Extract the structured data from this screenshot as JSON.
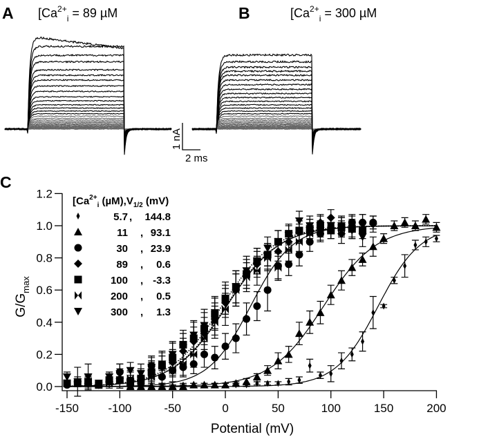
{
  "panels": {
    "A": {
      "label": "A",
      "title_pre": "[Ca",
      "title_sup": "2+",
      "title_sub": "i",
      "title_post": " = 89 µM",
      "amplitudes_nA": [
        0,
        0.02,
        0.04,
        0.06,
        0.08,
        0.1,
        0.13,
        0.16,
        0.2,
        0.24,
        0.29,
        0.34,
        0.4,
        0.48,
        0.57,
        0.67,
        0.78,
        0.9,
        1.05,
        1.2,
        1.4,
        1.6,
        1.82,
        2.0,
        2.2,
        2.5,
        2.74,
        3.07,
        3.45
      ]
    },
    "B": {
      "label": "B",
      "title_pre": "[Ca",
      "title_sup": "2+",
      "title_sub": "i",
      "title_post": " = 300 µM",
      "amplitudes_nA": [
        0,
        0.02,
        0.04,
        0.06,
        0.08,
        0.1,
        0.13,
        0.16,
        0.2,
        0.24,
        0.29,
        0.34,
        0.4,
        0.48,
        0.57,
        0.67,
        0.78,
        0.9,
        1.03,
        1.17,
        1.32,
        1.48,
        1.65,
        1.82,
        2.0,
        2.15,
        2.3,
        2.5,
        2.75
      ]
    },
    "scale_bar": {
      "current": "1 nA",
      "time": "2 ms"
    }
  },
  "chart_data": {
    "type": "scatter",
    "panel_label": "C",
    "xlabel": "Potential (mV)",
    "ylabel": "G/G",
    "ylabel_sub": "max",
    "xlim": [
      -150,
      200
    ],
    "ylim": [
      0,
      1.2
    ],
    "xticks": [
      -150,
      -100,
      -50,
      0,
      50,
      100,
      150,
      200
    ],
    "yticks": [
      "0.0",
      "0.2",
      "0.4",
      "0.6",
      "0.8",
      "1.0",
      "1.2"
    ],
    "legend": {
      "header_pre": "[Ca",
      "header_sup": "2+",
      "header_sub": "i",
      "header_mid": " (µM),V",
      "header_sub2": "1/2",
      "header_post": " (mV)",
      "placement": "top-left"
    },
    "series": [
      {
        "conc": "5.7",
        "v_half": "144.8",
        "marker": "small-diamond",
        "fit_slope_mV": 20,
        "fit_style": "solid",
        "points": [
          [
            -70,
            0.01,
            0.01
          ],
          [
            -60,
            0.01,
            0.01
          ],
          [
            -50,
            0.0,
            0.01
          ],
          [
            -40,
            0.01,
            0.01
          ],
          [
            -30,
            0.01,
            0.01
          ],
          [
            -20,
            0.01,
            0.01
          ],
          [
            -10,
            0.01,
            0.01
          ],
          [
            0,
            0.01,
            0.01
          ],
          [
            10,
            0.01,
            0.01
          ],
          [
            20,
            0.01,
            0.01
          ],
          [
            30,
            0.02,
            0.01
          ],
          [
            40,
            0.02,
            0.01
          ],
          [
            50,
            0.02,
            0.01
          ],
          [
            60,
            0.03,
            0.02
          ],
          [
            70,
            0.04,
            0.02
          ],
          [
            80,
            0.13,
            0.04
          ],
          [
            90,
            0.07,
            0.02
          ],
          [
            100,
            0.08,
            0.05
          ],
          [
            110,
            0.16,
            0.05
          ],
          [
            120,
            0.2,
            0.04
          ],
          [
            130,
            0.28,
            0.06
          ],
          [
            140,
            0.46,
            0.1
          ],
          [
            150,
            0.5,
            0.01
          ],
          [
            160,
            0.66,
            0.02
          ],
          [
            170,
            0.75,
            0.07
          ],
          [
            180,
            0.88,
            0.03
          ],
          [
            190,
            0.9,
            0.03
          ],
          [
            200,
            0.92,
            0.02
          ]
        ]
      },
      {
        "conc": "11",
        "v_half": "93.1",
        "marker": "triangle-up",
        "fit_slope_mV": 25,
        "fit_style": "solid",
        "points": [
          [
            -90,
            0.0,
            0.01
          ],
          [
            -80,
            0.0,
            0.01
          ],
          [
            -70,
            0.0,
            0.01
          ],
          [
            -60,
            0.0,
            0.01
          ],
          [
            -50,
            0.0,
            0.01
          ],
          [
            -40,
            0.0,
            0.01
          ],
          [
            -30,
            0.01,
            0.01
          ],
          [
            -20,
            0.01,
            0.01
          ],
          [
            -10,
            0.01,
            0.01
          ],
          [
            0,
            0.01,
            0.01
          ],
          [
            10,
            0.02,
            0.01
          ],
          [
            20,
            0.03,
            0.02
          ],
          [
            30,
            0.06,
            0.02
          ],
          [
            40,
            0.1,
            0.03
          ],
          [
            50,
            0.16,
            0.05
          ],
          [
            60,
            0.2,
            0.05
          ],
          [
            70,
            0.33,
            0.07
          ],
          [
            80,
            0.4,
            0.07
          ],
          [
            90,
            0.46,
            0.07
          ],
          [
            100,
            0.57,
            0.06
          ],
          [
            110,
            0.66,
            0.06
          ],
          [
            120,
            0.74,
            0.05
          ],
          [
            130,
            0.79,
            0.04
          ],
          [
            140,
            0.87,
            0.06
          ],
          [
            150,
            0.92,
            0.03
          ],
          [
            160,
            1.0,
            0.03
          ],
          [
            170,
            1.02,
            0.03
          ],
          [
            180,
            1.0,
            0.03
          ],
          [
            190,
            1.04,
            0.03
          ],
          [
            200,
            0.99,
            0.03
          ]
        ]
      },
      {
        "conc": "30",
        "v_half": "23.9",
        "marker": "circle",
        "fit_slope_mV": 20,
        "fit_style": "solid",
        "points": [
          [
            -150,
            0.01,
            0.01
          ],
          [
            -130,
            0.02,
            0.01
          ],
          [
            -110,
            0.03,
            0.02
          ],
          [
            -100,
            0.09,
            0.05
          ],
          [
            -90,
            0.01,
            0.02
          ],
          [
            -80,
            0.02,
            0.02
          ],
          [
            -70,
            0.13,
            0.05
          ],
          [
            -60,
            0.06,
            0.04
          ],
          [
            -50,
            0.1,
            0.04
          ],
          [
            -40,
            0.12,
            0.05
          ],
          [
            -30,
            0.14,
            0.06
          ],
          [
            -20,
            0.2,
            0.08
          ],
          [
            -10,
            0.18,
            0.07
          ],
          [
            0,
            0.25,
            0.08
          ],
          [
            10,
            0.3,
            0.09
          ],
          [
            20,
            0.42,
            0.1
          ],
          [
            30,
            0.5,
            0.09
          ],
          [
            40,
            0.6,
            0.13
          ],
          [
            50,
            0.75,
            0.09
          ],
          [
            60,
            0.76,
            0.07
          ],
          [
            70,
            0.82,
            0.07
          ],
          [
            80,
            0.9,
            0.06
          ],
          [
            90,
            0.95,
            0.05
          ],
          [
            100,
            0.97,
            0.05
          ],
          [
            110,
            1.0,
            0.06
          ],
          [
            120,
            1.02,
            0.05
          ],
          [
            130,
            1.02,
            0.05
          ],
          [
            140,
            1.02,
            0.04
          ]
        ]
      },
      {
        "conc": "89",
        "v_half": "0.6",
        "marker": "diamond",
        "fit_slope_mV": 25,
        "fit_style": "dotted",
        "points": [
          [
            -140,
            0.03,
            0.09
          ],
          [
            -130,
            0.02,
            0.02
          ],
          [
            -120,
            0.01,
            0.02
          ],
          [
            -110,
            0.03,
            0.03
          ],
          [
            -100,
            0.05,
            0.06
          ],
          [
            -90,
            0.04,
            0.05
          ],
          [
            -80,
            0.06,
            0.05
          ],
          [
            -70,
            0.1,
            0.06
          ],
          [
            -60,
            0.12,
            0.07
          ],
          [
            -50,
            0.15,
            0.08
          ],
          [
            -40,
            0.22,
            0.08
          ],
          [
            -30,
            0.28,
            0.09
          ],
          [
            -20,
            0.33,
            0.1
          ],
          [
            -10,
            0.42,
            0.1
          ],
          [
            0,
            0.52,
            0.09
          ],
          [
            10,
            0.6,
            0.1
          ],
          [
            20,
            0.7,
            0.09
          ],
          [
            30,
            0.76,
            0.08
          ],
          [
            40,
            0.82,
            0.07
          ],
          [
            50,
            0.84,
            0.06
          ],
          [
            60,
            0.9,
            0.06
          ],
          [
            70,
            0.96,
            0.05
          ],
          [
            80,
            0.99,
            0.05
          ],
          [
            90,
            1.02,
            0.05
          ],
          [
            100,
            1.05,
            0.05
          ],
          [
            110,
            0.95,
            0.06
          ],
          [
            120,
            0.98,
            0.06
          ],
          [
            130,
            1.02,
            0.05
          ],
          [
            140,
            1.01,
            0.05
          ]
        ]
      },
      {
        "conc": "100",
        "v_half": "-3.3",
        "marker": "square",
        "fit_slope_mV": 25,
        "fit_style": "dotted",
        "points": [
          [
            -150,
            0.02,
            0.02
          ],
          [
            -140,
            0.02,
            0.02
          ],
          [
            -130,
            0.03,
            0.03
          ],
          [
            -120,
            0.01,
            0.02
          ],
          [
            -110,
            0.04,
            0.04
          ],
          [
            -100,
            0.04,
            0.05
          ],
          [
            -90,
            0.03,
            0.04
          ],
          [
            -80,
            0.05,
            0.05
          ],
          [
            -70,
            0.09,
            0.06
          ],
          [
            -60,
            0.13,
            0.08
          ],
          [
            -50,
            0.18,
            0.09
          ],
          [
            -40,
            0.26,
            0.09
          ],
          [
            -30,
            0.3,
            0.1
          ],
          [
            -20,
            0.36,
            0.1
          ],
          [
            -10,
            0.45,
            0.1
          ],
          [
            0,
            0.54,
            0.09
          ],
          [
            10,
            0.62,
            0.1
          ],
          [
            20,
            0.7,
            0.09
          ],
          [
            30,
            0.78,
            0.08
          ],
          [
            40,
            0.82,
            0.07
          ],
          [
            50,
            0.9,
            0.07
          ],
          [
            60,
            0.95,
            0.06
          ],
          [
            70,
            0.97,
            0.06
          ],
          [
            80,
            0.98,
            0.06
          ],
          [
            90,
            1.0,
            0.06
          ],
          [
            100,
            0.97,
            0.05
          ],
          [
            110,
            0.99,
            0.06
          ],
          [
            120,
            0.98,
            0.05
          ],
          [
            130,
            0.97,
            0.05
          ]
        ]
      },
      {
        "conc": "200",
        "v_half": "0.5",
        "marker": "bowtie",
        "fit_slope_mV": 25,
        "fit_style": "dotted",
        "points": [
          [
            -150,
            0.02,
            0.02
          ],
          [
            -130,
            0.03,
            0.04
          ],
          [
            -110,
            0.02,
            0.03
          ],
          [
            -90,
            0.05,
            0.05
          ],
          [
            -70,
            0.06,
            0.06
          ],
          [
            -50,
            0.1,
            0.07
          ],
          [
            -40,
            0.14,
            0.08
          ],
          [
            -30,
            0.2,
            0.08
          ],
          [
            -20,
            0.3,
            0.09
          ],
          [
            -10,
            0.4,
            0.1
          ],
          [
            0,
            0.48,
            0.1
          ],
          [
            10,
            0.6,
            0.1
          ],
          [
            20,
            0.68,
            0.09
          ],
          [
            30,
            0.72,
            0.09
          ],
          [
            40,
            0.8,
            0.08
          ],
          [
            50,
            0.74,
            0.07
          ],
          [
            60,
            0.85,
            0.07
          ],
          [
            70,
            0.9,
            0.06
          ],
          [
            80,
            0.95,
            0.06
          ],
          [
            90,
            0.98,
            0.05
          ],
          [
            100,
            1.0,
            0.05
          ],
          [
            110,
            0.98,
            0.05
          ],
          [
            120,
            1.01,
            0.05
          ]
        ]
      },
      {
        "conc": "300",
        "v_half": "1.3",
        "marker": "triangle-down",
        "fit_slope_mV": 25,
        "fit_style": "solid",
        "points": [
          [
            -150,
            0.06,
            0.03
          ],
          [
            -140,
            0.03,
            0.03
          ],
          [
            -130,
            0.06,
            0.08
          ],
          [
            -120,
            0.02,
            0.02
          ],
          [
            -110,
            0.06,
            0.03
          ],
          [
            -100,
            0.08,
            0.06
          ],
          [
            -90,
            0.1,
            0.05
          ],
          [
            -80,
            0.08,
            0.06
          ],
          [
            -70,
            0.12,
            0.07
          ],
          [
            -60,
            0.14,
            0.08
          ],
          [
            -50,
            0.2,
            0.08
          ],
          [
            -40,
            0.24,
            0.09
          ],
          [
            -30,
            0.32,
            0.09
          ],
          [
            -20,
            0.38,
            0.1
          ],
          [
            -10,
            0.46,
            0.1
          ],
          [
            0,
            0.55,
            0.1
          ],
          [
            10,
            0.62,
            0.1
          ],
          [
            20,
            0.72,
            0.09
          ],
          [
            30,
            0.78,
            0.08
          ],
          [
            40,
            0.86,
            0.07
          ],
          [
            50,
            0.9,
            0.07
          ],
          [
            60,
            0.94,
            0.06
          ],
          [
            70,
            1.03,
            0.06
          ],
          [
            80,
            1.0,
            0.06
          ],
          [
            90,
            0.97,
            0.06
          ],
          [
            100,
            1.0,
            0.05
          ],
          [
            110,
            1.0,
            0.05
          ],
          [
            120,
            0.97,
            0.05
          ],
          [
            130,
            0.93,
            0.06
          ]
        ]
      }
    ]
  }
}
